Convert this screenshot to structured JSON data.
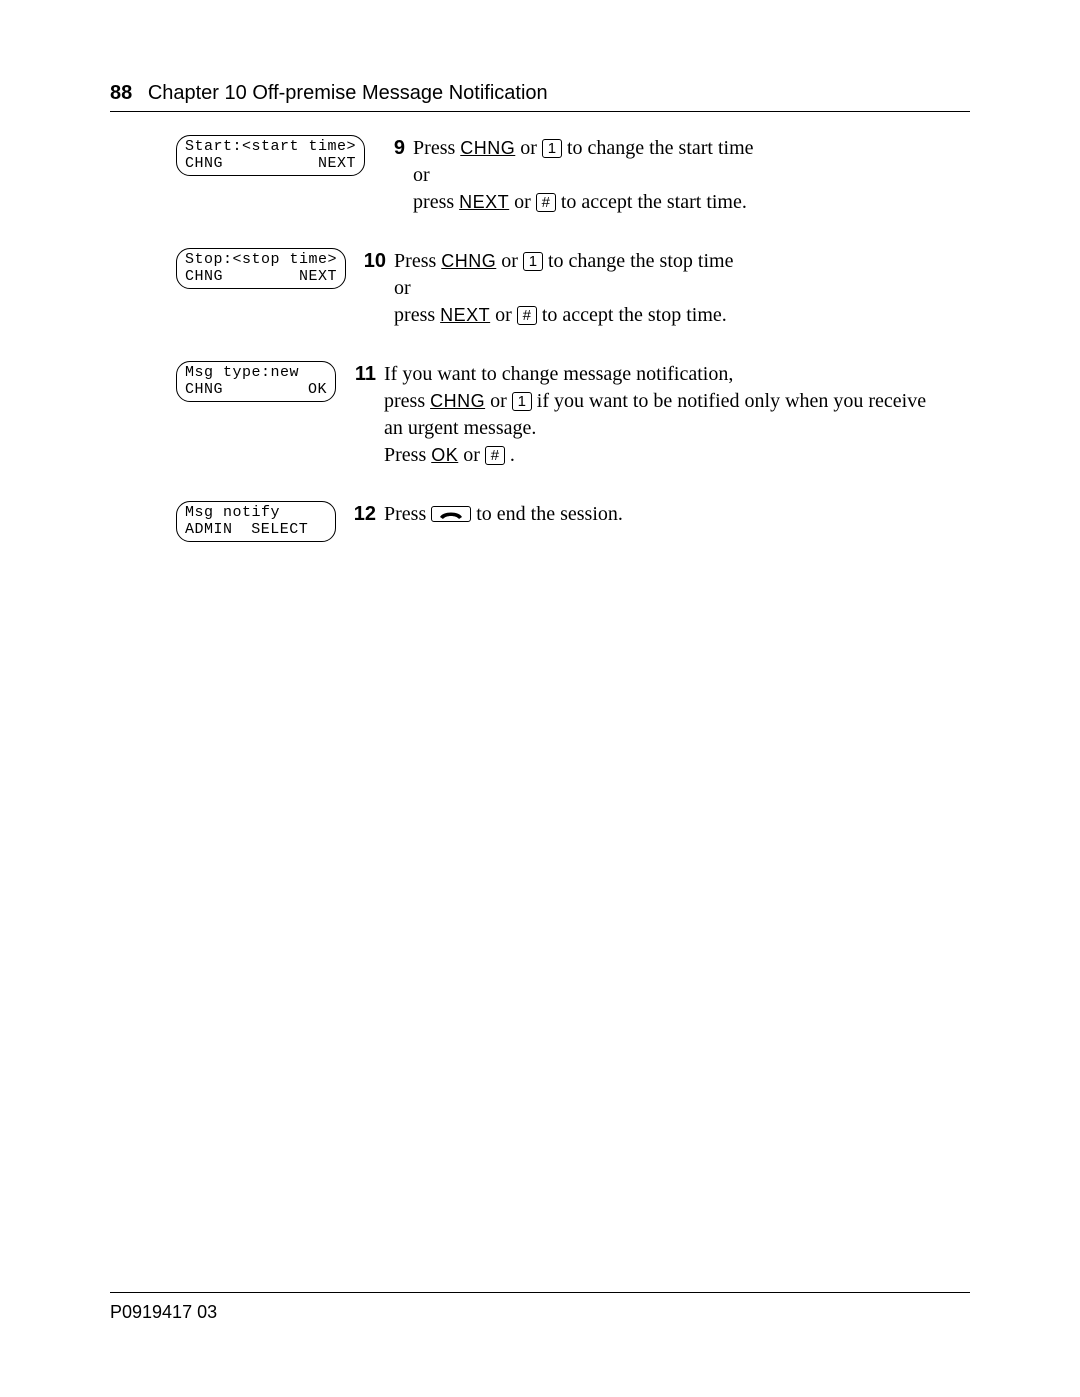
{
  "header": {
    "page_number": "88",
    "chapter_title": "Chapter 10  Off-premise Message Notification"
  },
  "keys": {
    "one": "1",
    "hash": "#"
  },
  "steps": [
    {
      "num": "9",
      "lcd": {
        "line1": "Start:<start time>",
        "left": "CHNG",
        "mid": "",
        "right": "NEXT"
      },
      "lines": [
        {
          "parts": [
            {
              "t": "text",
              "v": "Press "
            },
            {
              "t": "softkey",
              "v": "CHNG"
            },
            {
              "t": "text",
              "v": " or "
            },
            {
              "t": "key",
              "ref": "one"
            },
            {
              "t": "text",
              "v": "  to change the start time"
            }
          ]
        },
        {
          "parts": [
            {
              "t": "text",
              "v": "or"
            }
          ]
        },
        {
          "parts": [
            {
              "t": "text",
              "v": "press "
            },
            {
              "t": "softkey",
              "v": "NEXT"
            },
            {
              "t": "text",
              "v": " or "
            },
            {
              "t": "key",
              "ref": "hash"
            },
            {
              "t": "text",
              "v": "  to accept the start time."
            }
          ]
        }
      ]
    },
    {
      "num": "10",
      "lcd": {
        "line1": "Stop:<stop time>",
        "left": "CHNG",
        "mid": "",
        "right": "NEXT"
      },
      "lines": [
        {
          "parts": [
            {
              "t": "text",
              "v": "Press "
            },
            {
              "t": "softkey",
              "v": "CHNG"
            },
            {
              "t": "text",
              "v": " or "
            },
            {
              "t": "key",
              "ref": "one"
            },
            {
              "t": "text",
              "v": "  to change the stop time"
            }
          ]
        },
        {
          "parts": [
            {
              "t": "text",
              "v": "or"
            }
          ]
        },
        {
          "parts": [
            {
              "t": "text",
              "v": "press "
            },
            {
              "t": "softkey",
              "v": "NEXT"
            },
            {
              "t": "text",
              "v": " or "
            },
            {
              "t": "key",
              "ref": "hash"
            },
            {
              "t": "text",
              "v": "  to accept the stop time."
            }
          ]
        }
      ]
    },
    {
      "num": "11",
      "lcd": {
        "line1": "Msg type:new",
        "left": "CHNG",
        "mid": "",
        "right": "OK"
      },
      "lines": [
        {
          "parts": [
            {
              "t": "text",
              "v": "If you want to change message notification,"
            }
          ]
        },
        {
          "parts": [
            {
              "t": "text",
              "v": "press  "
            },
            {
              "t": "softkey",
              "v": "CHNG"
            },
            {
              "t": "text",
              "v": " or "
            },
            {
              "t": "key",
              "ref": "one"
            },
            {
              "t": "text",
              "v": "  if you want to be notified only when you receive"
            }
          ]
        },
        {
          "parts": [
            {
              "t": "text",
              "v": "an urgent message."
            }
          ]
        },
        {
          "parts": [
            {
              "t": "text",
              "v": "Press "
            },
            {
              "t": "softkey",
              "v": "OK"
            },
            {
              "t": "text",
              "v": " or "
            },
            {
              "t": "key",
              "ref": "hash"
            },
            {
              "t": "text",
              "v": " ."
            }
          ]
        }
      ]
    },
    {
      "num": "12",
      "lcd": {
        "line1": "Msg notify",
        "left": "ADMIN",
        "mid": "SELECT",
        "right": ""
      },
      "lines": [
        {
          "parts": [
            {
              "t": "text",
              "v": "Press "
            },
            {
              "t": "hangup"
            },
            {
              "t": "text",
              "v": "  to end the session."
            }
          ]
        }
      ]
    }
  ],
  "footer": {
    "doc_id": "P0919417 03"
  }
}
